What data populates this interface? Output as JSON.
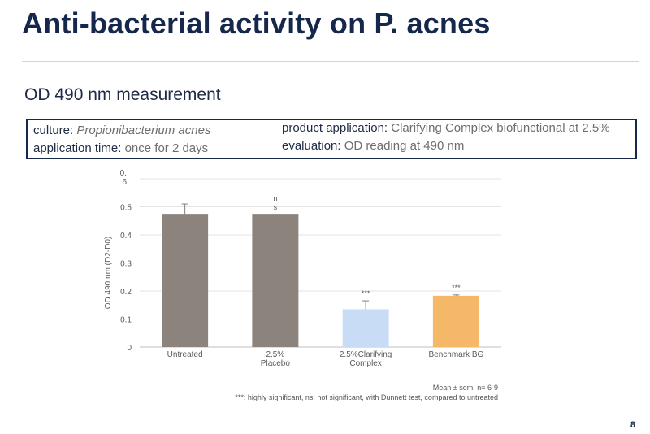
{
  "slide": {
    "title": "Anti-bacterial activity on P. acnes",
    "subtitle": "OD 490 nm measurement",
    "page_number": "8"
  },
  "info": {
    "culture_label": "culture:",
    "culture_value": "Propionibacterium acnes",
    "time_label": "application time:",
    "time_value": "once for 2 days",
    "product_label": "product application:",
    "product_value": "Clarifying Complex biofunctional at 2.5%",
    "evaluation_label": "evaluation:",
    "evaluation_value": "OD reading at 490 nm"
  },
  "chart_data": {
    "type": "bar",
    "ylabel": "OD 490 nm (D2-D0)",
    "ylim": [
      0,
      0.6
    ],
    "y_ticks": [
      "0",
      "0.1",
      "0.2",
      "0.3",
      "0.4",
      "0.5",
      "0.6"
    ],
    "y_tick_labels": [
      "0",
      "0.1",
      "0.2",
      "0.3",
      "0.4",
      "0.5",
      "0.\n6"
    ],
    "grid": true,
    "categories": [
      "Untreated",
      "2.5%\nPlacebo",
      "2.5%Clarifying\nComplex",
      "Benchmark BG"
    ],
    "values": [
      0.475,
      0.475,
      0.135,
      0.183
    ],
    "errors": [
      0.035,
      0.0,
      0.03,
      0.003
    ],
    "colors": [
      "#8c837d",
      "#8c837d",
      "#c9dcf6",
      "#f5b869"
    ],
    "significance": [
      "",
      "n\ns",
      "***",
      "***"
    ],
    "footnote_1": "Mean ± sem; n= 6-9",
    "footnote_2": "***: highly significant, ns: not significant, with Dunnett test, compared to untreated"
  }
}
